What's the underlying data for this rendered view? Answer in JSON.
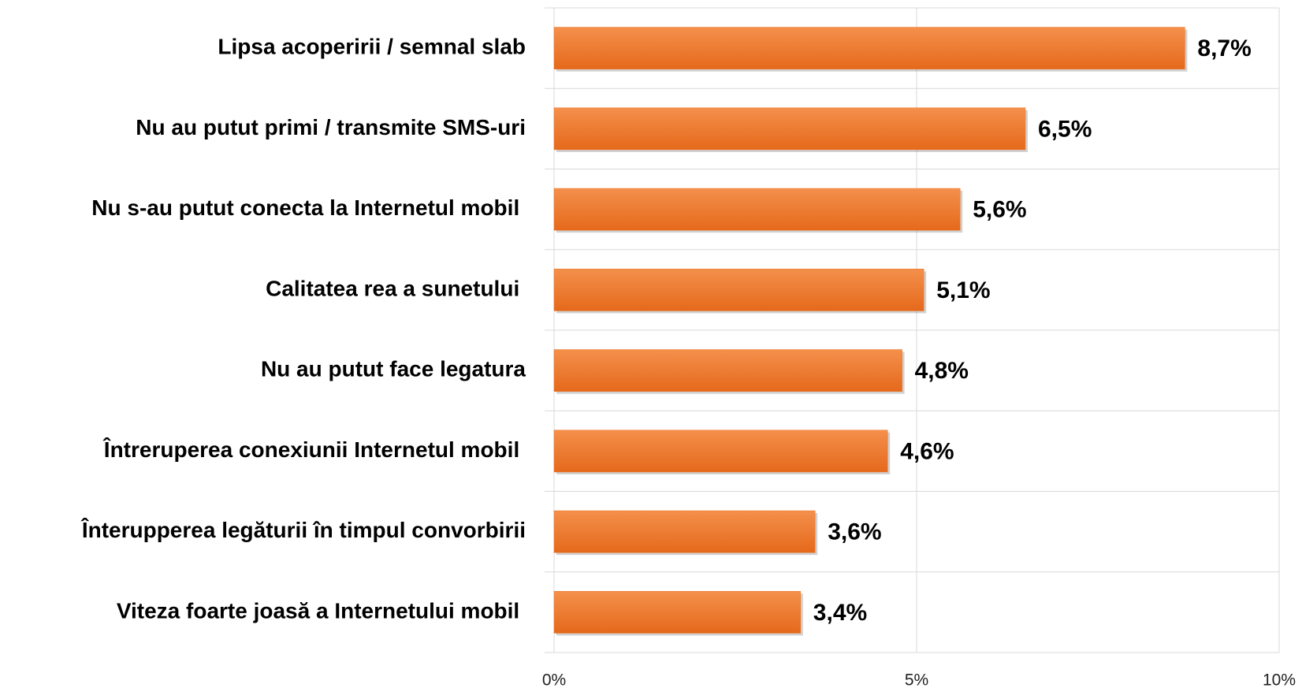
{
  "chart_data": {
    "type": "bar",
    "orientation": "horizontal",
    "categories": [
      "Lipsa acoperirii / semnal slab",
      "Nu au putut primi / transmite SMS-uri",
      "Nu s-au putut conecta la Internetul mobil ",
      "Calitatea rea a sunetului ",
      "Nu au putut face legatura",
      "Întreruperea conexiunii Internetul mobil ",
      "Înterupperea legăturii în timpul convorbirii",
      "Viteza foarte joasă a Internetului mobil "
    ],
    "values": [
      8.7,
      6.5,
      5.6,
      5.1,
      4.8,
      4.6,
      3.6,
      3.4
    ],
    "value_labels": [
      "8,7%",
      "6,5%",
      "5,6%",
      "5,1%",
      "4,8%",
      "4,6%",
      "3,6%",
      "3,4%"
    ],
    "color": "#ee7425",
    "xlim": [
      0,
      10
    ],
    "xticks": [
      {
        "value": 0,
        "label": "0%"
      },
      {
        "value": 5,
        "label": "5%"
      },
      {
        "value": 10,
        "label": "10%"
      }
    ],
    "grid": true
  }
}
